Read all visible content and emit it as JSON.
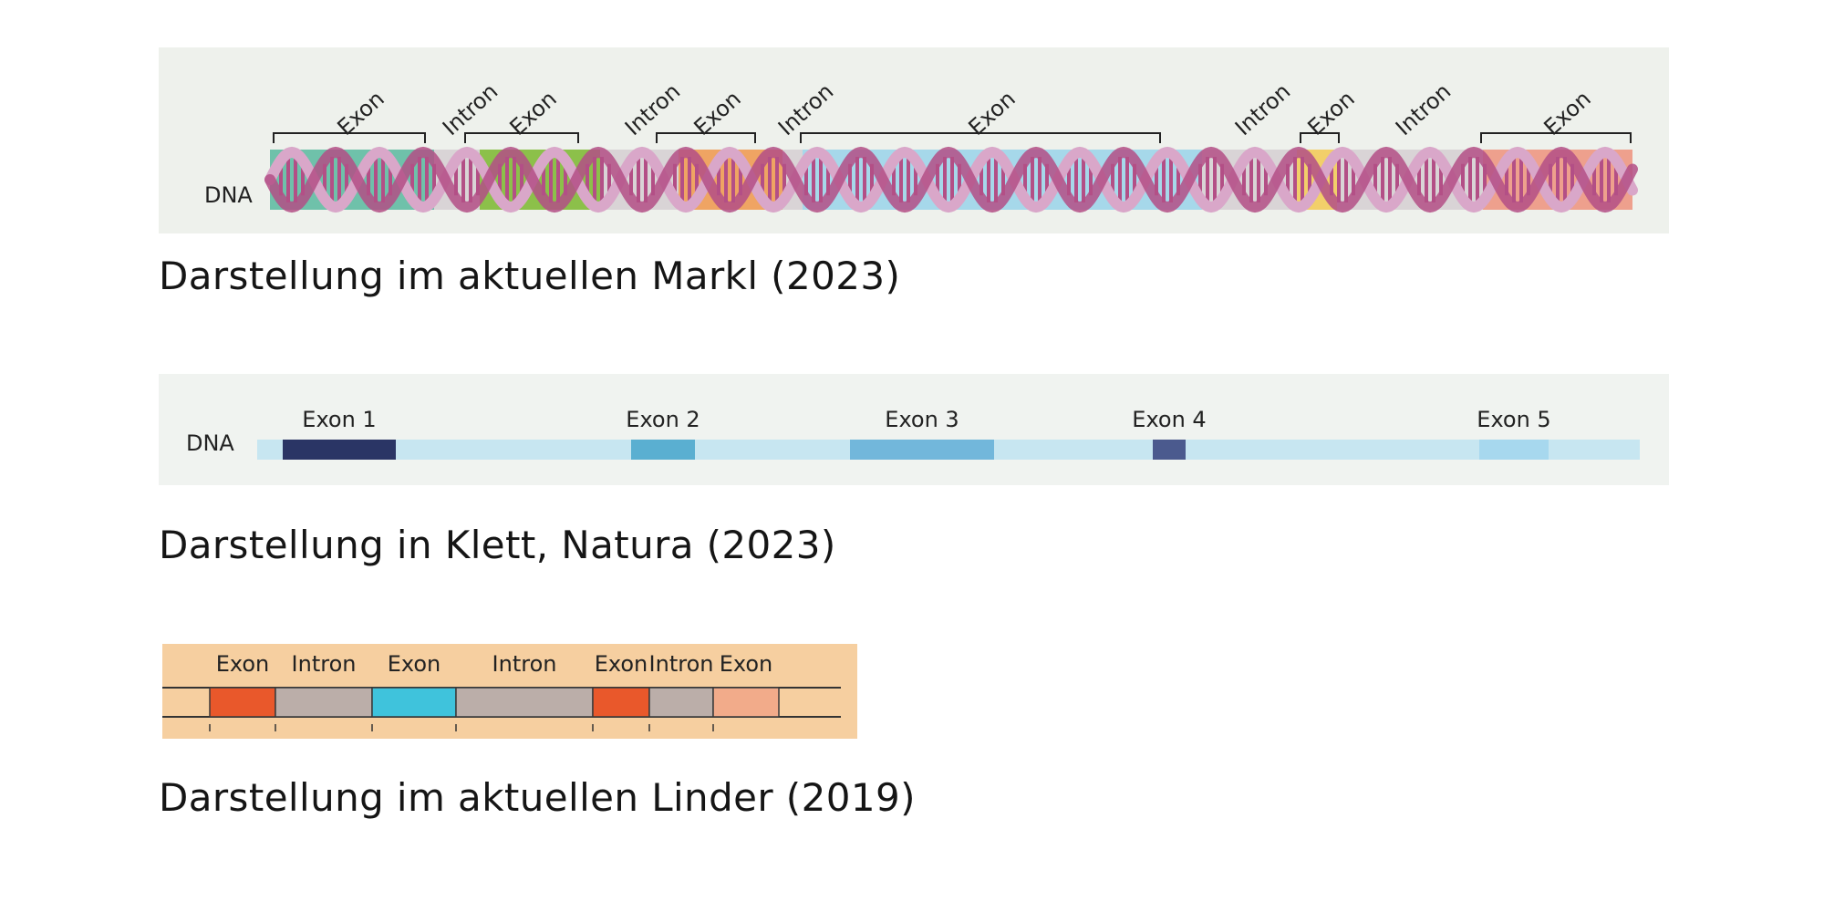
{
  "panels": {
    "markl": {
      "dna_label": "DNA",
      "caption": "Darstellung im aktuellen Markl (2023)",
      "segments": [
        {
          "kind": "exon",
          "label": "Exon",
          "color": "#6fc1aa"
        },
        {
          "kind": "intron",
          "label": "Intron",
          "color": "#d9d4d6"
        },
        {
          "kind": "exon",
          "label": "Exon",
          "color": "#8cc04a"
        },
        {
          "kind": "intron",
          "label": "Intron",
          "color": "#d9d4d6"
        },
        {
          "kind": "exon",
          "label": "Exon",
          "color": "#efa463"
        },
        {
          "kind": "intron",
          "label": "Intron",
          "color": "#d9d4d6"
        },
        {
          "kind": "exon",
          "label": "Exon",
          "color": "#a6d8ea"
        },
        {
          "kind": "intron",
          "label": "Intron",
          "color": "#d9d4d6"
        },
        {
          "kind": "exon",
          "label": "Exon",
          "color": "#f2cf6a"
        },
        {
          "kind": "intron",
          "label": "Intron",
          "color": "#d9d4d6"
        },
        {
          "kind": "exon",
          "label": "Exon",
          "color": "#eea08d"
        }
      ],
      "helix_color": "#b34f86",
      "helix_backbone_color": "#d9a7c9"
    },
    "klett": {
      "dna_label": "DNA",
      "caption": "Darstellung in Klett, Natura (2023)",
      "strand_color": "#c7e6f1",
      "exons": [
        {
          "label": "Exon 1",
          "color": "#2a3565"
        },
        {
          "label": "Exon 2",
          "color": "#5aafd1"
        },
        {
          "label": "Exon 3",
          "color": "#72b7db"
        },
        {
          "label": "Exon 4",
          "color": "#4b5a8e"
        },
        {
          "label": "Exon 5",
          "color": "#a7d8ee"
        }
      ]
    },
    "linder": {
      "caption": "Darstellung im aktuellen Linder (2019)",
      "segments": [
        {
          "kind": "exon",
          "label": "Exon",
          "color": "#e9582b"
        },
        {
          "kind": "intron",
          "label": "Intron",
          "color": "#bbaea9"
        },
        {
          "kind": "exon",
          "label": "Exon",
          "color": "#3fc3dc"
        },
        {
          "kind": "intron",
          "label": "Intron",
          "color": "#bbaea9"
        },
        {
          "kind": "exon",
          "label": "Exon",
          "color": "#e9582b"
        },
        {
          "kind": "intron",
          "label": "Intron",
          "color": "#bbaea9"
        },
        {
          "kind": "exon",
          "label": "Exon",
          "color": "#f2ab8a"
        }
      ]
    }
  }
}
